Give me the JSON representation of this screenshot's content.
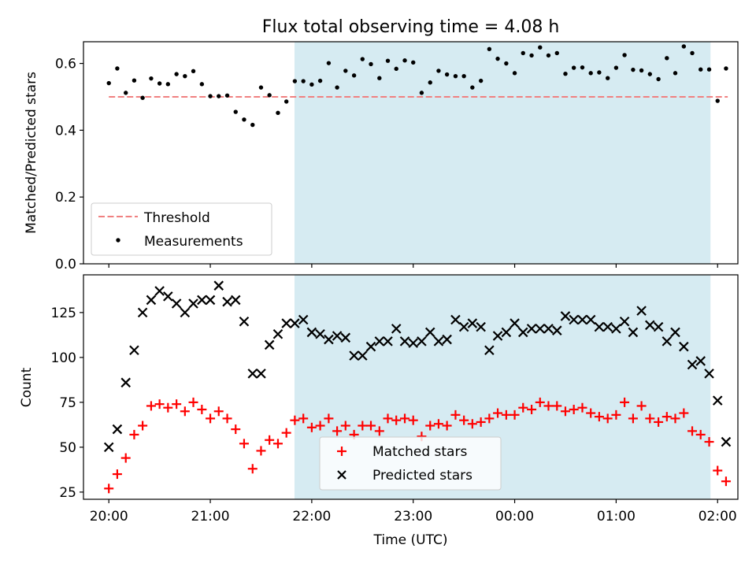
{
  "chart_data": [
    {
      "type": "scatter",
      "title": "Flux total observing time = 4.08 h",
      "xlabel": "",
      "ylabel": "Matched/Predicted stars",
      "ylim": [
        0,
        0.665
      ],
      "yticks": [
        "0.0",
        "0.2",
        "0.4",
        "0.6"
      ],
      "ytick_values": [
        0,
        0.2,
        0.4,
        0.6
      ],
      "xlim_hours": [
        19.75,
        26.2
      ],
      "shaded_span_hours": [
        21.83,
        25.93
      ],
      "shade_color": "#add8e6",
      "legend": {
        "placement": "lower-left",
        "entries": [
          "Threshold",
          "Measurements"
        ]
      },
      "threshold": {
        "name": "Threshold",
        "y": 0.5,
        "x_range_hours": [
          20.0,
          26.1
        ],
        "color": "#f08080"
      },
      "series": [
        {
          "name": "Measurements",
          "color": "#000000",
          "x_hours": [
            20.0,
            20.083,
            20.167,
            20.25,
            20.333,
            20.417,
            20.5,
            20.583,
            20.667,
            20.75,
            20.833,
            20.917,
            21.0,
            21.083,
            21.167,
            21.25,
            21.333,
            21.417,
            21.5,
            21.583,
            21.667,
            21.75,
            21.833,
            21.917,
            22.0,
            22.083,
            22.167,
            22.25,
            22.333,
            22.417,
            22.5,
            22.583,
            22.667,
            22.75,
            22.833,
            22.917,
            23.0,
            23.083,
            23.167,
            23.25,
            23.333,
            23.417,
            23.5,
            23.583,
            23.667,
            23.75,
            23.833,
            23.917,
            24.0,
            24.083,
            24.167,
            24.25,
            24.333,
            24.417,
            24.5,
            24.583,
            24.667,
            24.75,
            24.833,
            24.917,
            25.0,
            25.083,
            25.167,
            25.25,
            25.333,
            25.417,
            25.5,
            25.583,
            25.667,
            25.75,
            25.833,
            25.917,
            26.0,
            26.083
          ],
          "y": [
            0.541,
            0.585,
            0.512,
            0.549,
            0.497,
            0.555,
            0.54,
            0.538,
            0.568,
            0.562,
            0.577,
            0.538,
            0.502,
            0.502,
            0.504,
            0.455,
            0.432,
            0.416,
            0.528,
            0.505,
            0.452,
            0.486,
            0.547,
            0.547,
            0.537,
            0.548,
            0.601,
            0.528,
            0.578,
            0.564,
            0.613,
            0.598,
            0.556,
            0.608,
            0.584,
            0.609,
            0.603,
            0.512,
            0.543,
            0.578,
            0.567,
            0.562,
            0.562,
            0.528,
            0.548,
            0.643,
            0.614,
            0.6,
            0.571,
            0.631,
            0.624,
            0.648,
            0.624,
            0.631,
            0.569,
            0.587,
            0.588,
            0.571,
            0.573,
            0.556,
            0.587,
            0.625,
            0.581,
            0.579,
            0.568,
            0.553,
            0.616,
            0.571,
            0.651,
            0.631,
            0.582,
            0.582,
            0.488,
            0.585
          ]
        }
      ]
    },
    {
      "type": "scatter",
      "title": "",
      "xlabel": "Time (UTC)",
      "ylabel": "Count",
      "ylim": [
        21,
        146
      ],
      "yticks": [
        "25",
        "50",
        "75",
        "100",
        "125"
      ],
      "ytick_values": [
        25,
        50,
        75,
        100,
        125
      ],
      "xlim_hours": [
        19.75,
        26.2
      ],
      "xticks": [
        "20:00",
        "21:00",
        "22:00",
        "23:00",
        "00:00",
        "01:00",
        "02:00"
      ],
      "xtick_hours": [
        20,
        21,
        22,
        23,
        24,
        25,
        26
      ],
      "shaded_span_hours": [
        21.83,
        25.93
      ],
      "shade_color": "#add8e6",
      "legend": {
        "placement": "lower-center",
        "entries": [
          "Matched stars",
          "Predicted stars"
        ]
      },
      "series": [
        {
          "name": "Matched stars",
          "marker": "plus",
          "color": "#ff0000",
          "x_hours": [
            20.0,
            20.083,
            20.167,
            20.25,
            20.333,
            20.417,
            20.5,
            20.583,
            20.667,
            20.75,
            20.833,
            20.917,
            21.0,
            21.083,
            21.167,
            21.25,
            21.333,
            21.417,
            21.5,
            21.583,
            21.667,
            21.75,
            21.833,
            21.917,
            22.0,
            22.083,
            22.167,
            22.25,
            22.333,
            22.417,
            22.5,
            22.583,
            22.667,
            22.75,
            22.833,
            22.917,
            23.0,
            23.083,
            23.167,
            23.25,
            23.333,
            23.417,
            23.5,
            23.583,
            23.667,
            23.75,
            23.833,
            23.917,
            24.0,
            24.083,
            24.167,
            24.25,
            24.333,
            24.417,
            24.5,
            24.583,
            24.667,
            24.75,
            24.833,
            24.917,
            25.0,
            25.083,
            25.167,
            25.25,
            25.333,
            25.417,
            25.5,
            25.583,
            25.667,
            25.75,
            25.833,
            25.917,
            26.0,
            26.083
          ],
          "y": [
            27,
            35,
            44,
            57,
            62,
            73,
            74,
            72,
            74,
            70,
            75,
            71,
            66,
            70,
            66,
            60,
            52,
            38,
            48,
            54,
            52,
            58,
            65,
            66,
            61,
            62,
            66,
            59,
            62,
            57,
            62,
            62,
            59,
            66,
            65,
            66,
            65,
            56,
            62,
            63,
            62,
            68,
            65,
            63,
            64,
            66,
            69,
            68,
            68,
            72,
            71,
            75,
            73,
            73,
            70,
            71,
            72,
            69,
            67,
            66,
            68,
            75,
            66,
            73,
            66,
            64,
            67,
            66,
            69,
            59,
            57,
            53,
            37,
            31
          ]
        },
        {
          "name": "Predicted stars",
          "marker": "cross",
          "color": "#000000",
          "x_hours": [
            20.0,
            20.083,
            20.167,
            20.25,
            20.333,
            20.417,
            20.5,
            20.583,
            20.667,
            20.75,
            20.833,
            20.917,
            21.0,
            21.083,
            21.167,
            21.25,
            21.333,
            21.417,
            21.5,
            21.583,
            21.667,
            21.75,
            21.833,
            21.917,
            22.0,
            22.083,
            22.167,
            22.25,
            22.333,
            22.417,
            22.5,
            22.583,
            22.667,
            22.75,
            22.833,
            22.917,
            23.0,
            23.083,
            23.167,
            23.25,
            23.333,
            23.417,
            23.5,
            23.583,
            23.667,
            23.75,
            23.833,
            23.917,
            24.0,
            24.083,
            24.167,
            24.25,
            24.333,
            24.417,
            24.5,
            24.583,
            24.667,
            24.75,
            24.833,
            24.917,
            25.0,
            25.083,
            25.167,
            25.25,
            25.333,
            25.417,
            25.5,
            25.583,
            25.667,
            25.75,
            25.833,
            25.917,
            26.0,
            26.083
          ],
          "y": [
            50,
            60,
            86,
            104,
            125,
            132,
            137,
            134,
            130,
            125,
            130,
            132,
            132,
            140,
            131,
            132,
            120,
            91,
            91,
            107,
            113,
            119,
            119,
            121,
            114,
            113,
            110,
            112,
            111,
            101,
            101,
            106,
            109,
            109,
            116,
            109,
            108,
            109,
            114,
            109,
            110,
            121,
            117,
            119,
            117,
            104,
            112,
            114,
            119,
            114,
            116,
            116,
            116,
            115,
            123,
            121,
            121,
            121,
            117,
            117,
            116,
            120,
            114,
            126,
            118,
            117,
            109,
            114,
            106,
            96,
            98,
            91,
            76,
            53
          ]
        }
      ]
    }
  ]
}
